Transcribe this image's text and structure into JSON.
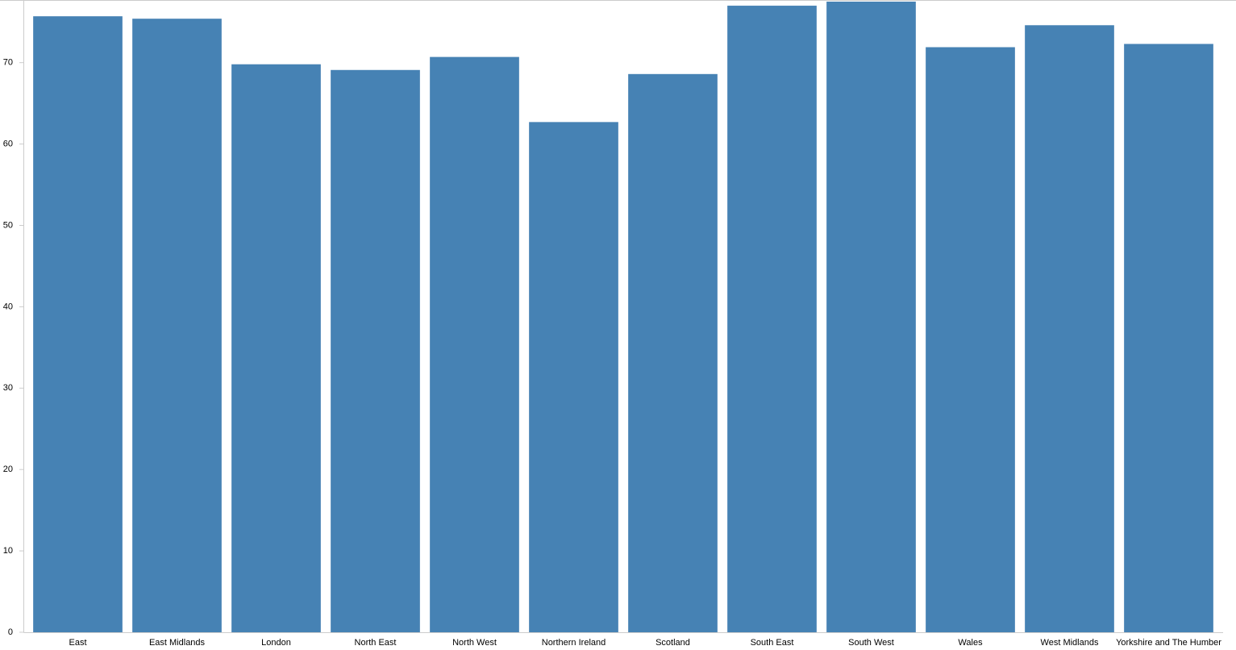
{
  "chart_data": {
    "type": "bar",
    "categories": [
      "East",
      "East Midlands",
      "London",
      "North East",
      "North West",
      "Northern Ireland",
      "Scotland",
      "South East",
      "South West",
      "Wales",
      "West Midlands",
      "Yorkshire and The Humber"
    ],
    "values": [
      75.7,
      75.4,
      69.8,
      69.1,
      70.7,
      62.7,
      68.6,
      77.0,
      77.5,
      71.9,
      74.6,
      72.3
    ],
    "color": "#4682b4",
    "ylim": [
      0,
      77.6
    ],
    "yticks": [
      0,
      10,
      20,
      30,
      40,
      50,
      60,
      70
    ]
  }
}
